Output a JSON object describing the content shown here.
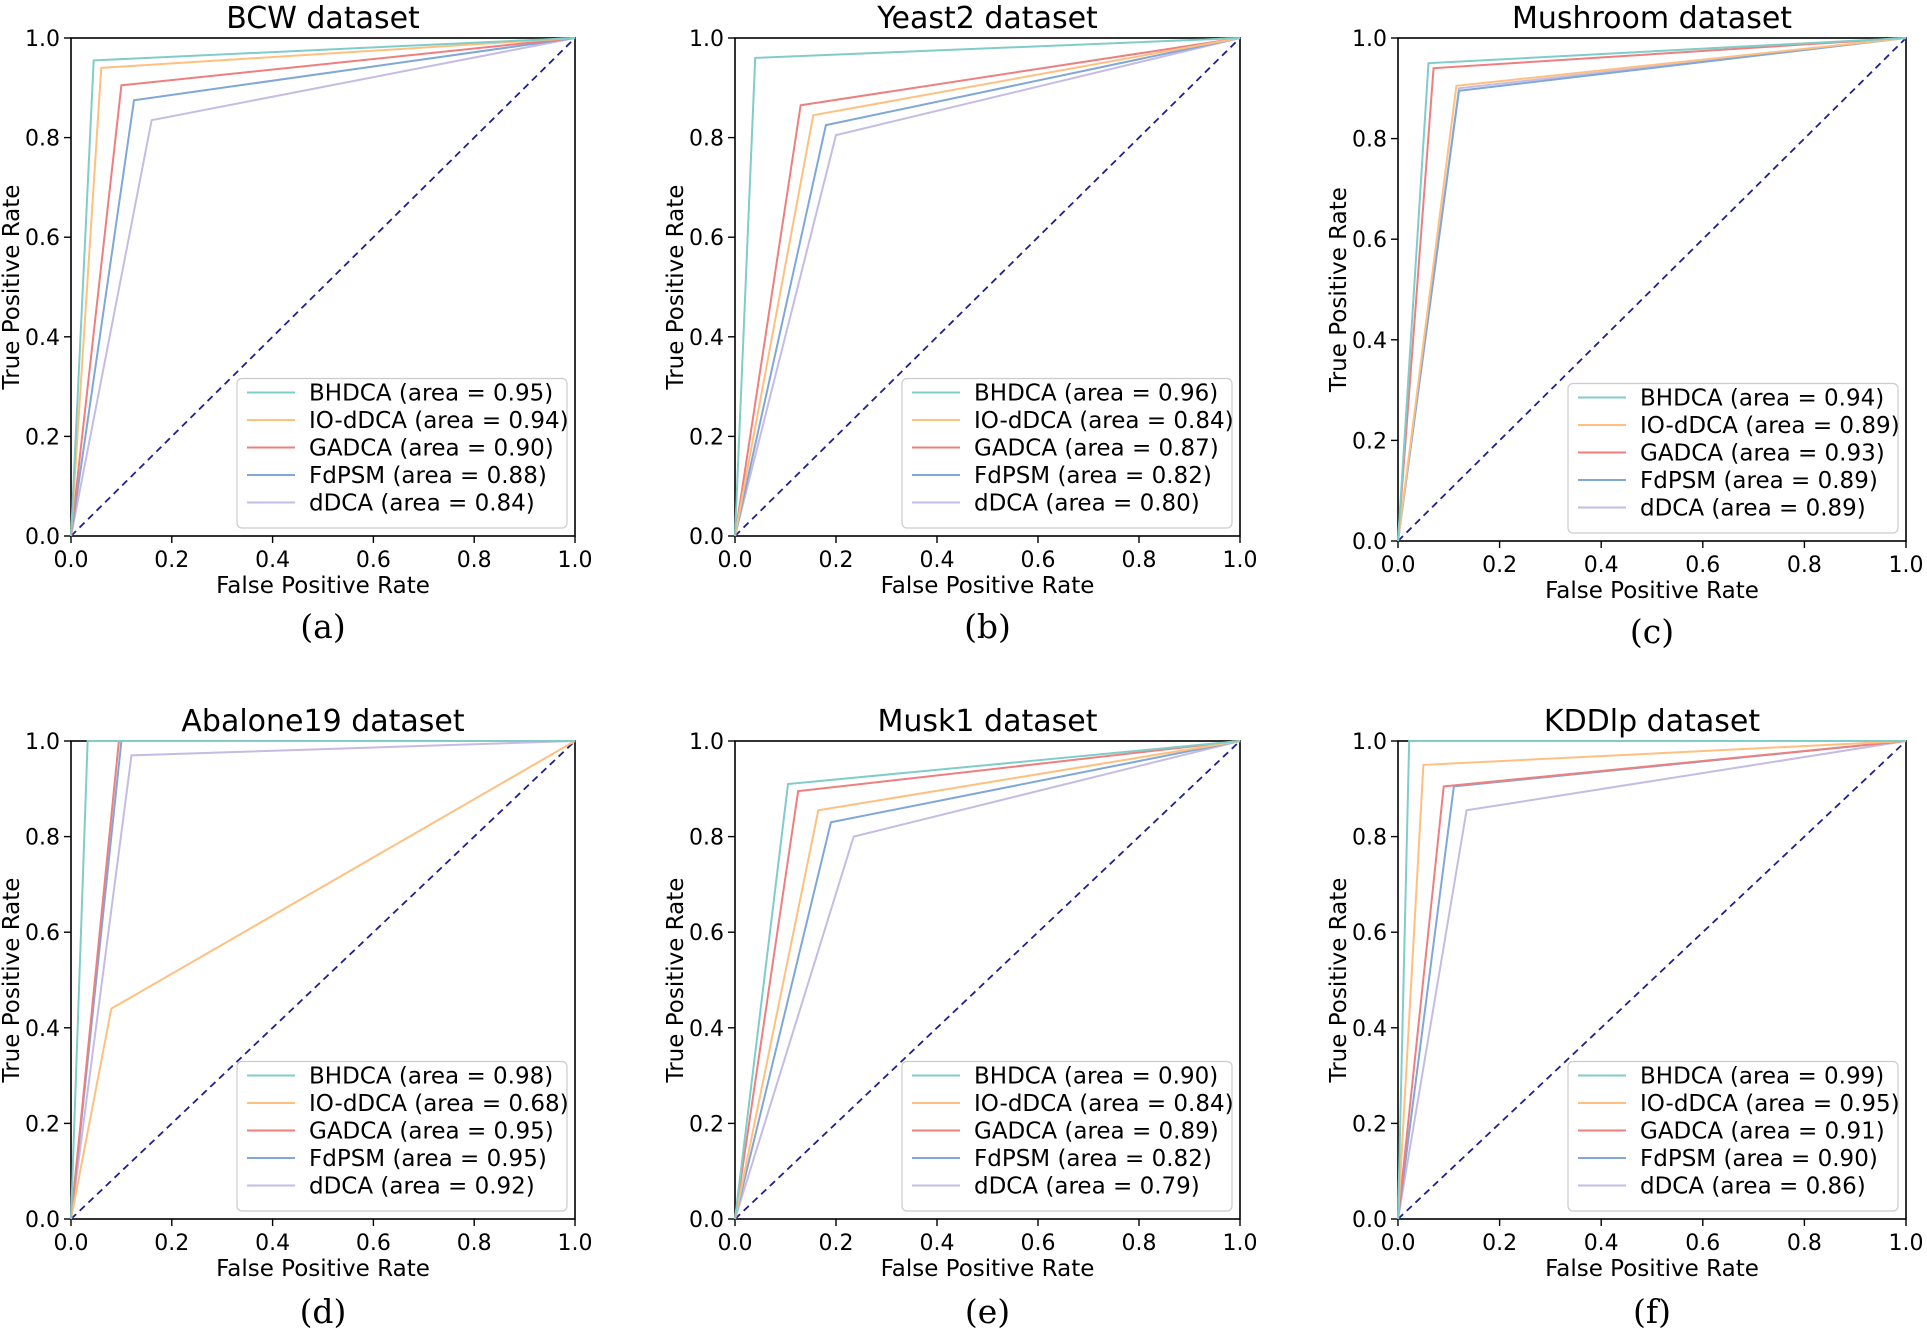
{
  "figure": {
    "captions": [
      "(a)",
      "(b)",
      "(c)",
      "(d)",
      "(e)",
      "(f)"
    ]
  },
  "series_colors": {
    "BHDCA": "#7fcdc8",
    "IO-dDCA": "#ffc07f",
    "GADCA": "#ee7f7e",
    "FdPSM": "#7fa7d7",
    "dDCA": "#c6bbe4",
    "chance": "#1f1f8f"
  },
  "chart_data": [
    {
      "type": "line",
      "title": "BCW dataset",
      "caption": "(a)",
      "xlabel": "False Positive Rate",
      "ylabel": "True Positive Rate",
      "xlim": [
        0.0,
        1.0
      ],
      "ylim": [
        0.0,
        1.0
      ],
      "xticks": [
        "0.0",
        "0.2",
        "0.4",
        "0.6",
        "0.8",
        "1.0"
      ],
      "yticks": [
        "0.0",
        "0.2",
        "0.4",
        "0.6",
        "0.8",
        "1.0"
      ],
      "legend_position": "lower-right",
      "series": [
        {
          "name": "BHDCA",
          "label": "BHDCA (area = 0.95)",
          "x": [
            0,
            0.045,
            1
          ],
          "y": [
            0,
            0.955,
            1
          ]
        },
        {
          "name": "IO-dDCA",
          "label": "IO-dDCA (area = 0.94)",
          "x": [
            0,
            0.06,
            1
          ],
          "y": [
            0,
            0.94,
            1
          ]
        },
        {
          "name": "GADCA",
          "label": "GADCA (area = 0.90)",
          "x": [
            0,
            0.1,
            1
          ],
          "y": [
            0,
            0.905,
            1
          ]
        },
        {
          "name": "FdPSM",
          "label": "FdPSM (area = 0.88)",
          "x": [
            0,
            0.125,
            1
          ],
          "y": [
            0,
            0.875,
            1
          ]
        },
        {
          "name": "dDCA",
          "label": "dDCA (area = 0.84)",
          "x": [
            0,
            0.16,
            1
          ],
          "y": [
            0,
            0.835,
            1
          ]
        }
      ]
    },
    {
      "type": "line",
      "title": "Yeast2 dataset",
      "caption": "(b)",
      "xlabel": "False Positive Rate",
      "ylabel": "True Positive Rate",
      "xlim": [
        0.0,
        1.0
      ],
      "ylim": [
        0.0,
        1.0
      ],
      "xticks": [
        "0.0",
        "0.2",
        "0.4",
        "0.6",
        "0.8",
        "1.0"
      ],
      "yticks": [
        "0.0",
        "0.2",
        "0.4",
        "0.6",
        "0.8",
        "1.0"
      ],
      "legend_position": "lower-right",
      "series": [
        {
          "name": "BHDCA",
          "label": "BHDCA (area = 0.96)",
          "x": [
            0,
            0.04,
            1
          ],
          "y": [
            0,
            0.96,
            1
          ]
        },
        {
          "name": "IO-dDCA",
          "label": "IO-dDCA (area = 0.84)",
          "x": [
            0,
            0.155,
            1
          ],
          "y": [
            0,
            0.845,
            1
          ]
        },
        {
          "name": "GADCA",
          "label": "GADCA (area = 0.87)",
          "x": [
            0,
            0.13,
            1
          ],
          "y": [
            0,
            0.865,
            1
          ]
        },
        {
          "name": "FdPSM",
          "label": "FdPSM (area = 0.82)",
          "x": [
            0,
            0.18,
            1
          ],
          "y": [
            0,
            0.825,
            1
          ]
        },
        {
          "name": "dDCA",
          "label": "dDCA (area = 0.80)",
          "x": [
            0,
            0.2,
            1
          ],
          "y": [
            0,
            0.805,
            1
          ]
        }
      ]
    },
    {
      "type": "line",
      "title": "Mushroom dataset",
      "caption": "(c)",
      "xlabel": "False Positive Rate",
      "ylabel": "True Positive Rate",
      "xlim": [
        0.0,
        1.0
      ],
      "ylim": [
        0.0,
        1.0
      ],
      "xticks": [
        "0.0",
        "0.2",
        "0.4",
        "0.6",
        "0.8",
        "1.0"
      ],
      "yticks": [
        "0.0",
        "0.2",
        "0.4",
        "0.6",
        "0.8",
        "1.0"
      ],
      "legend_position": "lower-right",
      "series": [
        {
          "name": "BHDCA",
          "label": "BHDCA (area = 0.94)",
          "x": [
            0,
            0.06,
            1
          ],
          "y": [
            0,
            0.95,
            1
          ]
        },
        {
          "name": "IO-dDCA",
          "label": "IO-dDCA (area = 0.89)",
          "x": [
            0,
            0.115,
            1
          ],
          "y": [
            0,
            0.905,
            1
          ]
        },
        {
          "name": "GADCA",
          "label": "GADCA (area = 0.93)",
          "x": [
            0,
            0.07,
            1
          ],
          "y": [
            0,
            0.94,
            1
          ]
        },
        {
          "name": "FdPSM",
          "label": "FdPSM (area = 0.89)",
          "x": [
            0,
            0.12,
            1
          ],
          "y": [
            0,
            0.895,
            1
          ]
        },
        {
          "name": "dDCA",
          "label": "dDCA (area = 0.89)",
          "x": [
            0,
            0.12,
            1
          ],
          "y": [
            0,
            0.9,
            1
          ]
        }
      ]
    },
    {
      "type": "line",
      "title": "Abalone19 dataset",
      "caption": "(d)",
      "xlabel": "False Positive Rate",
      "ylabel": "True Positive Rate",
      "xlim": [
        0.0,
        1.0
      ],
      "ylim": [
        0.0,
        1.0
      ],
      "xticks": [
        "0.0",
        "0.2",
        "0.4",
        "0.6",
        "0.8",
        "1.0"
      ],
      "yticks": [
        "0.0",
        "0.2",
        "0.4",
        "0.6",
        "0.8",
        "1.0"
      ],
      "legend_position": "lower-right",
      "series": [
        {
          "name": "BHDCA",
          "label": "BHDCA (area = 0.98)",
          "x": [
            0,
            0.033,
            1
          ],
          "y": [
            0,
            1.0,
            1
          ]
        },
        {
          "name": "IO-dDCA",
          "label": "IO-dDCA (area = 0.68)",
          "x": [
            0,
            0.08,
            1
          ],
          "y": [
            0,
            0.44,
            1
          ]
        },
        {
          "name": "GADCA",
          "label": "GADCA (area = 0.95)",
          "x": [
            0,
            0.095,
            1
          ],
          "y": [
            0,
            1.0,
            1
          ]
        },
        {
          "name": "FdPSM",
          "label": "FdPSM (area = 0.95)",
          "x": [
            0,
            0.1,
            1
          ],
          "y": [
            0,
            1.0,
            1
          ]
        },
        {
          "name": "dDCA",
          "label": "dDCA (area = 0.92)",
          "x": [
            0,
            0.12,
            1
          ],
          "y": [
            0,
            0.97,
            1
          ]
        }
      ]
    },
    {
      "type": "line",
      "title": "Musk1 dataset",
      "caption": "(e)",
      "xlabel": "False Positive Rate",
      "ylabel": "True Positive Rate",
      "xlim": [
        0.0,
        1.0
      ],
      "ylim": [
        0.0,
        1.0
      ],
      "xticks": [
        "0.0",
        "0.2",
        "0.4",
        "0.6",
        "0.8",
        "1.0"
      ],
      "yticks": [
        "0.0",
        "0.2",
        "0.4",
        "0.6",
        "0.8",
        "1.0"
      ],
      "legend_position": "lower-right",
      "series": [
        {
          "name": "BHDCA",
          "label": "BHDCA (area = 0.90)",
          "x": [
            0,
            0.105,
            1
          ],
          "y": [
            0,
            0.91,
            1
          ]
        },
        {
          "name": "IO-dDCA",
          "label": "IO-dDCA (area = 0.84)",
          "x": [
            0,
            0.165,
            1
          ],
          "y": [
            0,
            0.855,
            1
          ]
        },
        {
          "name": "GADCA",
          "label": "GADCA (area = 0.89)",
          "x": [
            0,
            0.125,
            1
          ],
          "y": [
            0,
            0.895,
            1
          ]
        },
        {
          "name": "FdPSM",
          "label": "FdPSM (area = 0.82)",
          "x": [
            0,
            0.19,
            1
          ],
          "y": [
            0,
            0.83,
            1
          ]
        },
        {
          "name": "dDCA",
          "label": "dDCA (area = 0.79)",
          "x": [
            0,
            0.235,
            1
          ],
          "y": [
            0,
            0.8,
            1
          ]
        }
      ]
    },
    {
      "type": "line",
      "title": "KDDlp dataset",
      "caption": "(f)",
      "xlabel": "False Positive Rate",
      "ylabel": "True Positive Rate",
      "xlim": [
        0.0,
        1.0
      ],
      "ylim": [
        0.0,
        1.0
      ],
      "xticks": [
        "0.0",
        "0.2",
        "0.4",
        "0.6",
        "0.8",
        "1.0"
      ],
      "yticks": [
        "0.0",
        "0.2",
        "0.4",
        "0.6",
        "0.8",
        "1.0"
      ],
      "legend_position": "lower-right",
      "series": [
        {
          "name": "BHDCA",
          "label": "BHDCA (area = 0.99)",
          "x": [
            0,
            0.022,
            1
          ],
          "y": [
            0,
            1.0,
            1
          ]
        },
        {
          "name": "IO-dDCA",
          "label": "IO-dDCA (area = 0.95)",
          "x": [
            0,
            0.05,
            1
          ],
          "y": [
            0,
            0.95,
            1
          ]
        },
        {
          "name": "GADCA",
          "label": "GADCA (area = 0.91)",
          "x": [
            0,
            0.09,
            1
          ],
          "y": [
            0,
            0.905,
            1
          ]
        },
        {
          "name": "FdPSM",
          "label": "FdPSM (area = 0.90)",
          "x": [
            0,
            0.11,
            1
          ],
          "y": [
            0,
            0.905,
            1
          ]
        },
        {
          "name": "dDCA",
          "label": "dDCA (area = 0.86)",
          "x": [
            0,
            0.135,
            1
          ],
          "y": [
            0,
            0.855,
            1
          ]
        }
      ]
    }
  ]
}
